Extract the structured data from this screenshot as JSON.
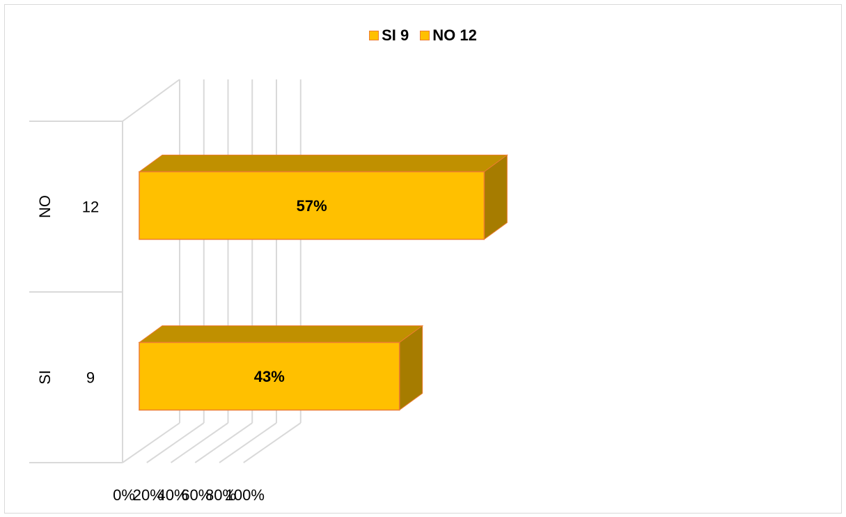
{
  "chart_data": {
    "type": "bar",
    "orientation": "horizontal",
    "three_d": true,
    "categories": [
      "SI",
      "NO"
    ],
    "category_counts": [
      "9",
      "12"
    ],
    "series": [
      {
        "name": "SI 9",
        "color": "#FFC000"
      },
      {
        "name": "NO 12",
        "color": "#FFC000"
      }
    ],
    "values": [
      43,
      57
    ],
    "data_labels": [
      "43%",
      "57%"
    ],
    "x_ticks": [
      "0%",
      "20%",
      "40%",
      "60%",
      "80%",
      "100%"
    ],
    "xlim": [
      0,
      100
    ],
    "grid": true,
    "legend_position": "top",
    "title": "",
    "xlabel": "",
    "ylabel": "",
    "colors": {
      "bar_front": "#FFC000",
      "bar_top": "#C09000",
      "bar_side": "#A67C00",
      "bar_border": "#ED7D31",
      "grid": "#d9d9d9"
    }
  }
}
